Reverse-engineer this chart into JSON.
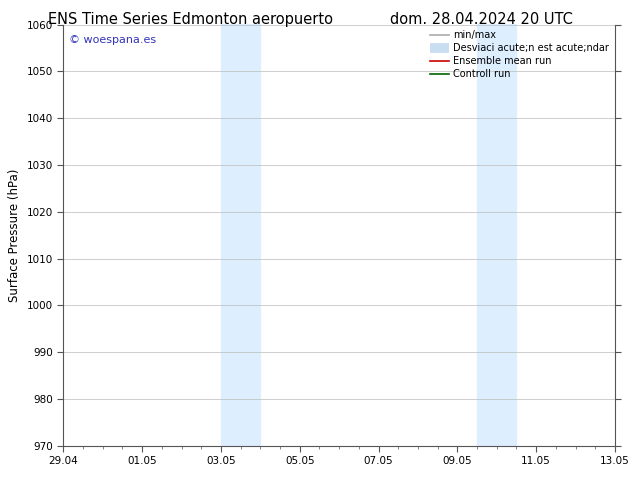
{
  "title_left": "ENS Time Series Edmonton aeropuerto",
  "title_right": "dom. 28.04.2024 20 UTC",
  "ylabel": "Surface Pressure (hPa)",
  "ylim": [
    970,
    1060
  ],
  "yticks": [
    970,
    980,
    990,
    1000,
    1010,
    1020,
    1030,
    1040,
    1050,
    1060
  ],
  "xtick_positions": [
    0,
    2,
    4,
    6,
    8,
    10,
    12,
    14
  ],
  "xtick_labels": [
    "29.04",
    "01.05",
    "03.05",
    "05.05",
    "07.05",
    "09.05",
    "11.05",
    "13.05"
  ],
  "watermark": "© woespana.es",
  "watermark_color": "#3333bb",
  "background_color": "#ffffff",
  "shaded_bands": [
    {
      "x_start": 4.0,
      "x_end": 5.0,
      "color": "#ddeeff"
    },
    {
      "x_start": 10.5,
      "x_end": 11.5,
      "color": "#ddeeff"
    }
  ],
  "legend_items": [
    {
      "label": "min/max",
      "color": "#aaaaaa",
      "lw": 1.2,
      "style": "line"
    },
    {
      "label": "Desviaci acute;n est acute;ndar",
      "color": "#c8ddf0",
      "lw": 7,
      "style": "band"
    },
    {
      "label": "Ensemble mean run",
      "color": "#cc0000",
      "lw": 1.2,
      "style": "line"
    },
    {
      "label": "Controll run",
      "color": "#006600",
      "lw": 1.2,
      "style": "line"
    }
  ],
  "title_fontsize": 10.5,
  "axis_label_fontsize": 8.5,
  "tick_fontsize": 7.5,
  "legend_fontsize": 7,
  "grid_color": "#bbbbbb",
  "spine_color": "#555555",
  "minor_xtick_interval": 0.5
}
